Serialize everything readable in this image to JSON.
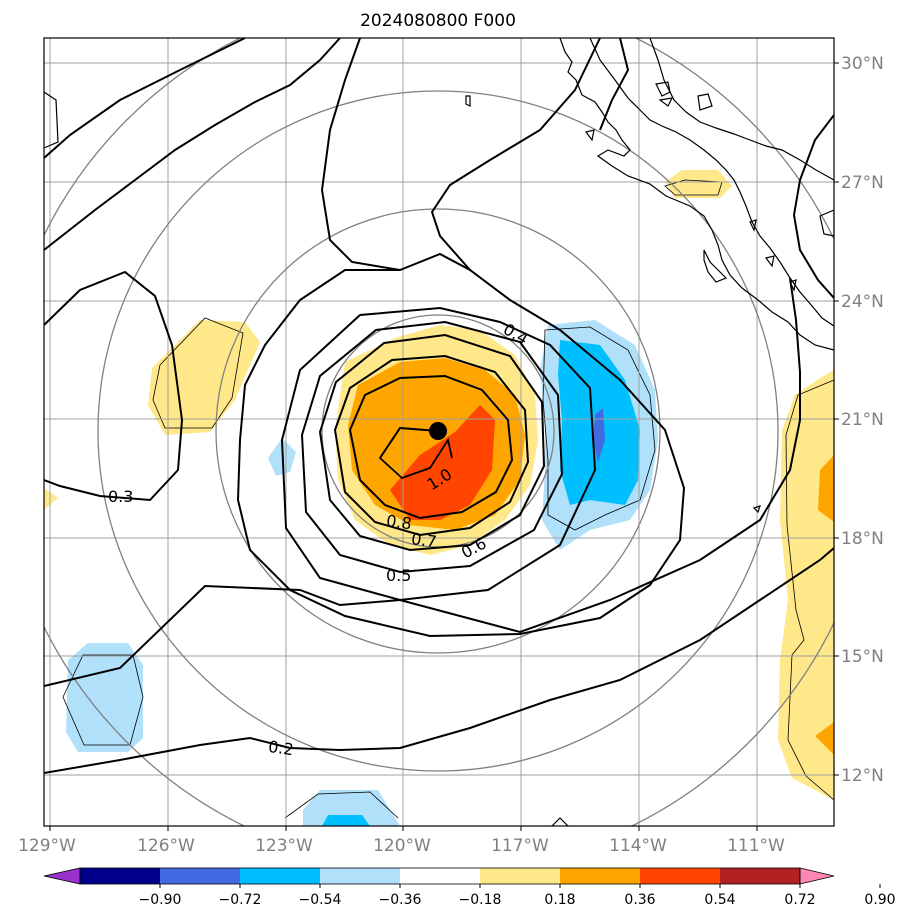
{
  "chart_data": {
    "type": "contour-map",
    "title": "2024080800 F000",
    "lat_ticks": [
      "30°N",
      "27°N",
      "24°N",
      "21°N",
      "18°N",
      "15°N",
      "12°N"
    ],
    "lon_ticks": [
      "129°W",
      "126°W",
      "123°W",
      "120°W",
      "117°W",
      "114°W",
      "111°W"
    ],
    "colorbar": {
      "ticks": [
        "−0.90",
        "−0.72",
        "−0.54",
        "−0.36",
        "−0.18",
        "0.18",
        "0.36",
        "0.54",
        "0.72",
        "0.90"
      ],
      "colors": [
        "#9932cc",
        "#00008b",
        "#4169e1",
        "#00bfff",
        "#b0e0fa",
        "#ffffff",
        "#ffe88a",
        "#ffa500",
        "#ff4500",
        "#b22222",
        "#ff85b3"
      ],
      "extend": "both"
    },
    "contour_labels": [
      {
        "text": "0.2",
        "lon": -125.0,
        "lat": 13.2
      },
      {
        "text": "0.3",
        "lon": -126.9,
        "lat": 19.0
      },
      {
        "text": "0.4",
        "lon": -116.2,
        "lat": 22.9
      },
      {
        "text": "0.5",
        "lon": -119.9,
        "lat": 17.0
      },
      {
        "text": "0.6",
        "lon": -117.1,
        "lat": 18.0
      },
      {
        "text": "0.7",
        "lon": -119.4,
        "lat": 17.9
      },
      {
        "text": "0.8",
        "lon": -120.0,
        "lat": 18.3
      },
      {
        "text": "1.0",
        "lon": -118.9,
        "lat": 20.0
      }
    ],
    "center": {
      "lon": -118.9,
      "lat": 20.7
    },
    "extent": {
      "lon": [
        -129,
        -109
      ],
      "lat": [
        11,
        31
      ]
    }
  }
}
